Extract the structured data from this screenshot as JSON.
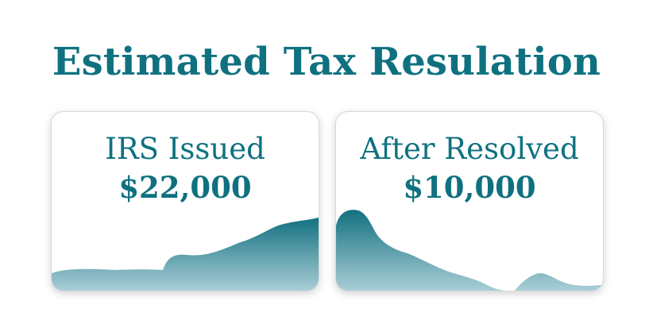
{
  "title": "Estimated Tax Resulation",
  "cards": [
    {
      "label": "IRS Issued",
      "amount": "$22,000"
    },
    {
      "label": "After Resolved",
      "amount": "$10,000"
    }
  ],
  "colors": {
    "accent": "#0f7180",
    "wave_top": "#137080",
    "wave_bottom": "#a9ced6"
  }
}
